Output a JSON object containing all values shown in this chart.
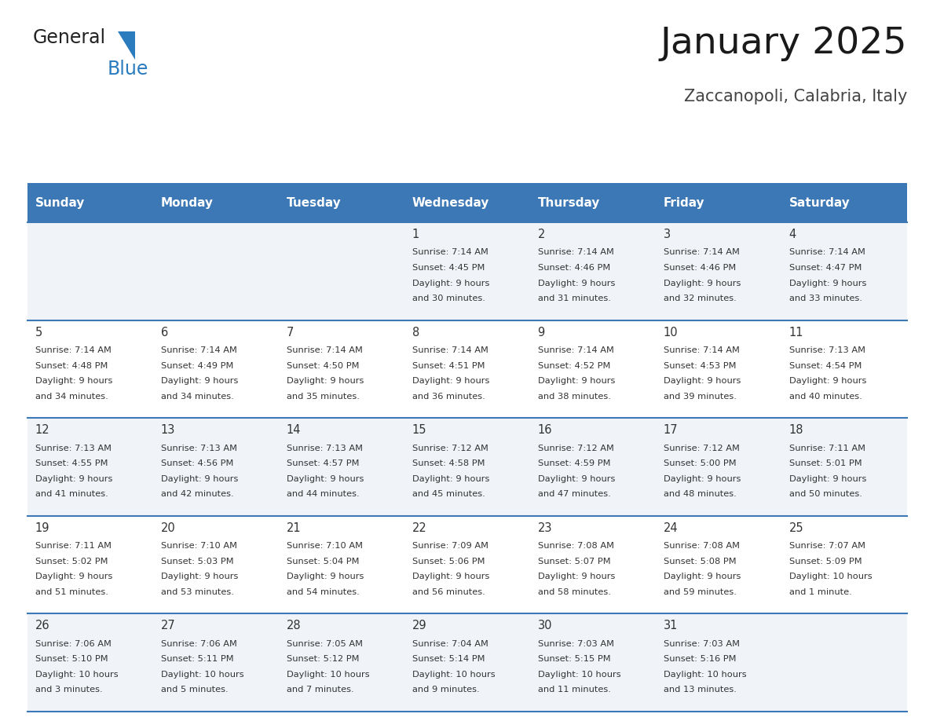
{
  "title": "January 2025",
  "subtitle": "Zaccanopoli, Calabria, Italy",
  "header_color": "#3b78b5",
  "header_text_color": "#ffffff",
  "row_bg_even": "#f0f4f8",
  "row_bg_odd": "#ffffff",
  "separator_color": "#3b78b5",
  "text_color": "#333333",
  "day_headers": [
    "Sunday",
    "Monday",
    "Tuesday",
    "Wednesday",
    "Thursday",
    "Friday",
    "Saturday"
  ],
  "days": [
    {
      "date": 1,
      "col": 3,
      "row": 0,
      "sunrise": "7:14 AM",
      "sunset": "4:45 PM",
      "dl1": "Daylight: 9 hours",
      "dl2": "and 30 minutes."
    },
    {
      "date": 2,
      "col": 4,
      "row": 0,
      "sunrise": "7:14 AM",
      "sunset": "4:46 PM",
      "dl1": "Daylight: 9 hours",
      "dl2": "and 31 minutes."
    },
    {
      "date": 3,
      "col": 5,
      "row": 0,
      "sunrise": "7:14 AM",
      "sunset": "4:46 PM",
      "dl1": "Daylight: 9 hours",
      "dl2": "and 32 minutes."
    },
    {
      "date": 4,
      "col": 6,
      "row": 0,
      "sunrise": "7:14 AM",
      "sunset": "4:47 PM",
      "dl1": "Daylight: 9 hours",
      "dl2": "and 33 minutes."
    },
    {
      "date": 5,
      "col": 0,
      "row": 1,
      "sunrise": "7:14 AM",
      "sunset": "4:48 PM",
      "dl1": "Daylight: 9 hours",
      "dl2": "and 34 minutes."
    },
    {
      "date": 6,
      "col": 1,
      "row": 1,
      "sunrise": "7:14 AM",
      "sunset": "4:49 PM",
      "dl1": "Daylight: 9 hours",
      "dl2": "and 34 minutes."
    },
    {
      "date": 7,
      "col": 2,
      "row": 1,
      "sunrise": "7:14 AM",
      "sunset": "4:50 PM",
      "dl1": "Daylight: 9 hours",
      "dl2": "and 35 minutes."
    },
    {
      "date": 8,
      "col": 3,
      "row": 1,
      "sunrise": "7:14 AM",
      "sunset": "4:51 PM",
      "dl1": "Daylight: 9 hours",
      "dl2": "and 36 minutes."
    },
    {
      "date": 9,
      "col": 4,
      "row": 1,
      "sunrise": "7:14 AM",
      "sunset": "4:52 PM",
      "dl1": "Daylight: 9 hours",
      "dl2": "and 38 minutes."
    },
    {
      "date": 10,
      "col": 5,
      "row": 1,
      "sunrise": "7:14 AM",
      "sunset": "4:53 PM",
      "dl1": "Daylight: 9 hours",
      "dl2": "and 39 minutes."
    },
    {
      "date": 11,
      "col": 6,
      "row": 1,
      "sunrise": "7:13 AM",
      "sunset": "4:54 PM",
      "dl1": "Daylight: 9 hours",
      "dl2": "and 40 minutes."
    },
    {
      "date": 12,
      "col": 0,
      "row": 2,
      "sunrise": "7:13 AM",
      "sunset": "4:55 PM",
      "dl1": "Daylight: 9 hours",
      "dl2": "and 41 minutes."
    },
    {
      "date": 13,
      "col": 1,
      "row": 2,
      "sunrise": "7:13 AM",
      "sunset": "4:56 PM",
      "dl1": "Daylight: 9 hours",
      "dl2": "and 42 minutes."
    },
    {
      "date": 14,
      "col": 2,
      "row": 2,
      "sunrise": "7:13 AM",
      "sunset": "4:57 PM",
      "dl1": "Daylight: 9 hours",
      "dl2": "and 44 minutes."
    },
    {
      "date": 15,
      "col": 3,
      "row": 2,
      "sunrise": "7:12 AM",
      "sunset": "4:58 PM",
      "dl1": "Daylight: 9 hours",
      "dl2": "and 45 minutes."
    },
    {
      "date": 16,
      "col": 4,
      "row": 2,
      "sunrise": "7:12 AM",
      "sunset": "4:59 PM",
      "dl1": "Daylight: 9 hours",
      "dl2": "and 47 minutes."
    },
    {
      "date": 17,
      "col": 5,
      "row": 2,
      "sunrise": "7:12 AM",
      "sunset": "5:00 PM",
      "dl1": "Daylight: 9 hours",
      "dl2": "and 48 minutes."
    },
    {
      "date": 18,
      "col": 6,
      "row": 2,
      "sunrise": "7:11 AM",
      "sunset": "5:01 PM",
      "dl1": "Daylight: 9 hours",
      "dl2": "and 50 minutes."
    },
    {
      "date": 19,
      "col": 0,
      "row": 3,
      "sunrise": "7:11 AM",
      "sunset": "5:02 PM",
      "dl1": "Daylight: 9 hours",
      "dl2": "and 51 minutes."
    },
    {
      "date": 20,
      "col": 1,
      "row": 3,
      "sunrise": "7:10 AM",
      "sunset": "5:03 PM",
      "dl1": "Daylight: 9 hours",
      "dl2": "and 53 minutes."
    },
    {
      "date": 21,
      "col": 2,
      "row": 3,
      "sunrise": "7:10 AM",
      "sunset": "5:04 PM",
      "dl1": "Daylight: 9 hours",
      "dl2": "and 54 minutes."
    },
    {
      "date": 22,
      "col": 3,
      "row": 3,
      "sunrise": "7:09 AM",
      "sunset": "5:06 PM",
      "dl1": "Daylight: 9 hours",
      "dl2": "and 56 minutes."
    },
    {
      "date": 23,
      "col": 4,
      "row": 3,
      "sunrise": "7:08 AM",
      "sunset": "5:07 PM",
      "dl1": "Daylight: 9 hours",
      "dl2": "and 58 minutes."
    },
    {
      "date": 24,
      "col": 5,
      "row": 3,
      "sunrise": "7:08 AM",
      "sunset": "5:08 PM",
      "dl1": "Daylight: 9 hours",
      "dl2": "and 59 minutes."
    },
    {
      "date": 25,
      "col": 6,
      "row": 3,
      "sunrise": "7:07 AM",
      "sunset": "5:09 PM",
      "dl1": "Daylight: 10 hours",
      "dl2": "and 1 minute."
    },
    {
      "date": 26,
      "col": 0,
      "row": 4,
      "sunrise": "7:06 AM",
      "sunset": "5:10 PM",
      "dl1": "Daylight: 10 hours",
      "dl2": "and 3 minutes."
    },
    {
      "date": 27,
      "col": 1,
      "row": 4,
      "sunrise": "7:06 AM",
      "sunset": "5:11 PM",
      "dl1": "Daylight: 10 hours",
      "dl2": "and 5 minutes."
    },
    {
      "date": 28,
      "col": 2,
      "row": 4,
      "sunrise": "7:05 AM",
      "sunset": "5:12 PM",
      "dl1": "Daylight: 10 hours",
      "dl2": "and 7 minutes."
    },
    {
      "date": 29,
      "col": 3,
      "row": 4,
      "sunrise": "7:04 AM",
      "sunset": "5:14 PM",
      "dl1": "Daylight: 10 hours",
      "dl2": "and 9 minutes."
    },
    {
      "date": 30,
      "col": 4,
      "row": 4,
      "sunrise": "7:03 AM",
      "sunset": "5:15 PM",
      "dl1": "Daylight: 10 hours",
      "dl2": "and 11 minutes."
    },
    {
      "date": 31,
      "col": 5,
      "row": 4,
      "sunrise": "7:03 AM",
      "sunset": "5:16 PM",
      "dl1": "Daylight: 10 hours",
      "dl2": "and 13 minutes."
    }
  ],
  "logo_general_color": "#222222",
  "logo_blue_color": "#2b7bbf",
  "logo_triangle_color": "#2b7bbf"
}
